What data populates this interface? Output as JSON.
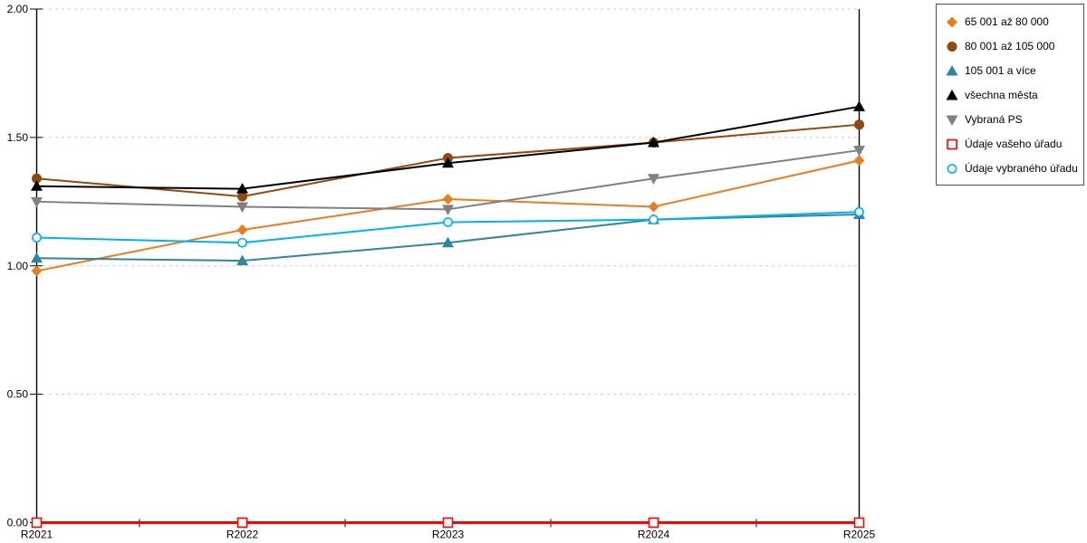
{
  "chart_data": {
    "type": "line",
    "title": "",
    "xlabel": "",
    "ylabel": "",
    "categories": [
      "R2021",
      "R2022",
      "R2023",
      "R2024",
      "R2025"
    ],
    "series": [
      {
        "name": "65 001 až 80 000",
        "color": "#E87D22",
        "marker": "diamond",
        "line_width": 2,
        "values": [
          0.98,
          1.14,
          1.26,
          1.23,
          1.41
        ]
      },
      {
        "name": "80 001 až 105 000",
        "color": "#8F4A0E",
        "marker": "circle",
        "line_width": 2,
        "values": [
          1.34,
          1.27,
          1.42,
          1.48,
          1.55
        ]
      },
      {
        "name": "105 001 a více",
        "color": "#31859C",
        "marker": "triangle-up",
        "line_width": 2,
        "values": [
          1.03,
          1.02,
          1.09,
          1.18,
          1.2
        ]
      },
      {
        "name": "všechna města",
        "color": "#000000",
        "marker": "triangle-up",
        "line_width": 2,
        "values": [
          1.31,
          1.3,
          1.4,
          1.48,
          1.62
        ]
      },
      {
        "name": "Vybraná PS",
        "color": "#808080",
        "marker": "triangle-down",
        "line_width": 2,
        "values": [
          1.25,
          1.23,
          1.22,
          1.34,
          1.45
        ]
      },
      {
        "name": "Údaje vašeho úřadu",
        "color": "#FF0000",
        "marker": "open-square",
        "line_width": 3,
        "values": [
          0.0,
          0.0,
          0.0,
          0.0,
          0.0
        ]
      },
      {
        "name": "Údaje vybraného úřadu",
        "color": "#00B0F0",
        "marker": "open-circle",
        "line_width": 2,
        "values": [
          1.11,
          1.09,
          1.17,
          1.18,
          1.21
        ]
      }
    ],
    "ylim": [
      0,
      2
    ],
    "ytick_labels": [
      "0.00",
      "0.50",
      "1.00",
      "1.50",
      "2.00"
    ],
    "grid": "dashed-horizontal",
    "grid_color": "#C8C8C8",
    "axis_color": "#000000",
    "legend_position": "top-right"
  }
}
